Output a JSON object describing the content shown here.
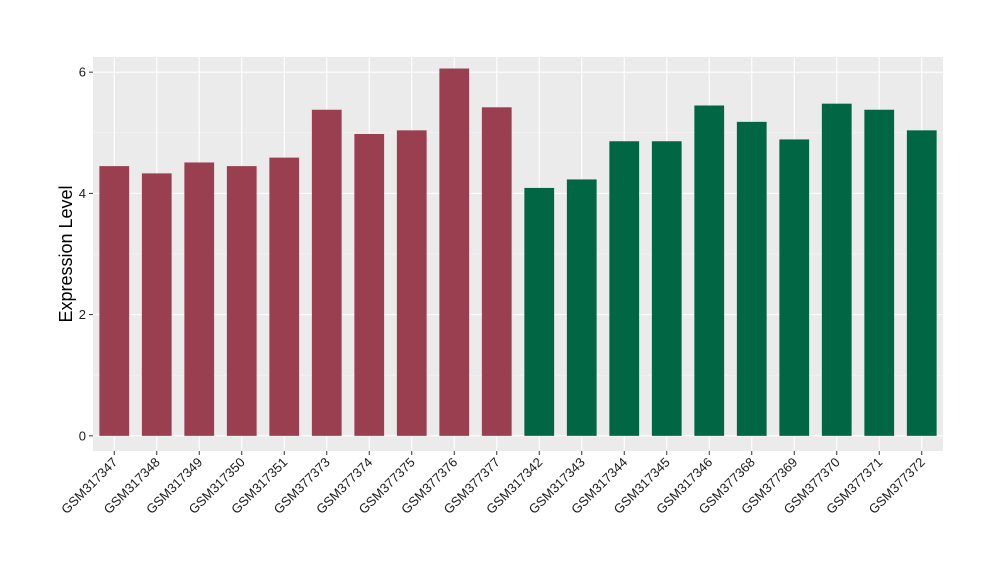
{
  "chart_data": {
    "type": "bar",
    "title": "",
    "xlabel": "",
    "ylabel": "Expression Level",
    "ylim": [
      -0.25,
      6.25
    ],
    "yticks": [
      0,
      2,
      4,
      6
    ],
    "grid": true,
    "legend": "none",
    "categories": [
      "GSM317347",
      "GSM317348",
      "GSM317349",
      "GSM317350",
      "GSM317351",
      "GSM377373",
      "GSM377374",
      "GSM377375",
      "GSM377376",
      "GSM377377",
      "GSM317342",
      "GSM317343",
      "GSM317344",
      "GSM317345",
      "GSM317346",
      "GSM377368",
      "GSM377369",
      "GSM377370",
      "GSM377371",
      "GSM377372"
    ],
    "values": [
      4.45,
      4.33,
      4.51,
      4.45,
      4.59,
      5.38,
      4.98,
      5.04,
      6.06,
      5.42,
      4.09,
      4.23,
      4.86,
      4.86,
      5.45,
      5.18,
      4.89,
      5.48,
      5.38,
      5.04
    ],
    "groups": [
      {
        "color": "#9a3f4f",
        "count": 10
      },
      {
        "color": "#006644",
        "count": 10
      }
    ],
    "colors": {
      "panel_background": "#ebebeb",
      "grid_major": "#ffffff",
      "grid_minor": "#f5f5f5",
      "tick": "#333333"
    }
  }
}
